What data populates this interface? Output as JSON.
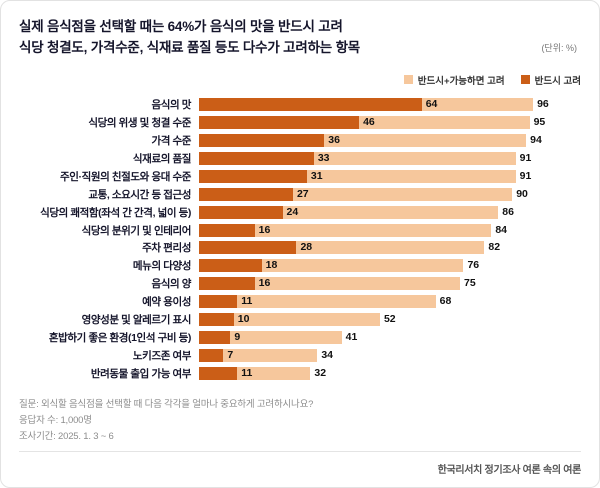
{
  "header": {
    "title_line1": "실제 음식점을 선택할 때는 64%가 음식의 맛을 반드시 고려",
    "title_line2": "식당 청결도, 가격수준, 식재료 품질 등도 다수가 고려하는 항목",
    "unit_note": "(단위: %)"
  },
  "legend": [
    {
      "label": "반드시+가능하면 고려",
      "color": "#F6C79C"
    },
    {
      "label": "반드시 고려",
      "color": "#CB5E17"
    }
  ],
  "chart_data": {
    "type": "bar",
    "orientation": "horizontal",
    "xlim": [
      0,
      100
    ],
    "grid": false,
    "legend_position": "top-right",
    "categories": [
      "음식의 맛",
      "식당의 위생 및 청결 수준",
      "가격 수준",
      "식재료의 품질",
      "주인·직원의 친절도와 응대 수준",
      "교통, 소요시간 등 접근성",
      "식당의 쾌적함(좌석 간 간격, 넓이 등)",
      "식당의 분위기 및 인테리어",
      "주차 편리성",
      "메뉴의 다양성",
      "음식의 양",
      "예약 용이성",
      "영양성분 및 알레르기 표시",
      "혼밥하기 좋은 환경(1인석 구비 등)",
      "노키즈존 여부",
      "반려동물 출입 가능 여부"
    ],
    "series": [
      {
        "name": "반드시+가능하면 고려",
        "color": "#F6C79C",
        "values": [
          96,
          95,
          94,
          91,
          91,
          90,
          86,
          84,
          82,
          76,
          75,
          68,
          52,
          41,
          34,
          32
        ]
      },
      {
        "name": "반드시 고려",
        "color": "#CB5E17",
        "values": [
          64,
          46,
          36,
          33,
          31,
          27,
          24,
          16,
          28,
          18,
          16,
          11,
          10,
          9,
          7,
          11
        ]
      }
    ]
  },
  "footnotes": {
    "question": "질문: 외식할 음식점을 선택할 때 다음 각각을 얼마나 중요하게 고려하시나요?",
    "respondents": "응답자 수: 1,000명",
    "period": "조사기간: 2025. 1. 3 ~ 6"
  },
  "footer": {
    "source": "한국리서치 정기조사 여론 속의 여론"
  }
}
